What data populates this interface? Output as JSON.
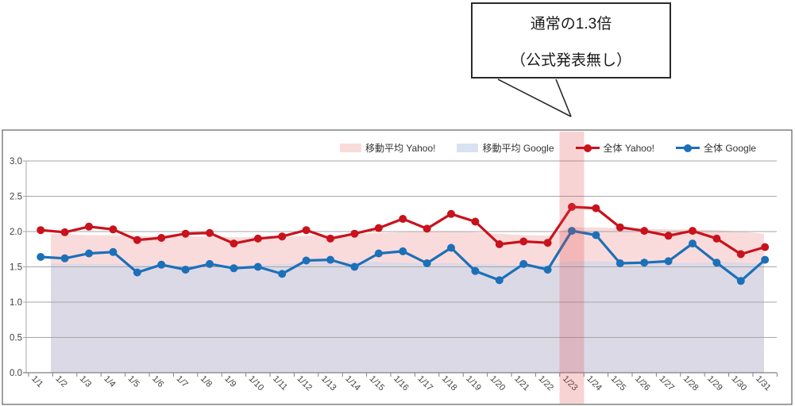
{
  "chart_data": {
    "type": "line",
    "categories": [
      "1/1",
      "1/2",
      "1/3",
      "1/4",
      "1/5",
      "1/6",
      "1/7",
      "1/8",
      "1/9",
      "1/10",
      "1/11",
      "1/12",
      "1/13",
      "1/14",
      "1/15",
      "1/16",
      "1/17",
      "1/18",
      "1/19",
      "1/20",
      "1/21",
      "1/22",
      "1/23",
      "1/24",
      "1/25",
      "1/26",
      "1/27",
      "1/28",
      "1/29",
      "1/30",
      "1/31"
    ],
    "series": [
      {
        "name": "移動平均 Yahoo!",
        "kind": "area",
        "legend_color": "#fadbdb",
        "fill": "#fadbdb",
        "values": [
          1.97,
          1.96,
          1.95,
          1.95,
          1.94,
          1.93,
          1.93,
          1.93,
          1.92,
          1.92,
          1.93,
          1.94,
          1.95,
          1.96,
          1.98,
          1.99,
          2.0,
          2.0,
          1.99,
          1.97,
          1.95,
          1.94,
          2.06,
          2.06,
          2.05,
          2.04,
          2.03,
          2.03,
          2.02,
          2.0,
          1.97
        ]
      },
      {
        "name": "移動平均 Google",
        "kind": "area",
        "legend_color": "#d9e2f0",
        "fill": "#dcd9e7",
        "values": [
          1.55,
          1.54,
          1.54,
          1.54,
          1.53,
          1.52,
          1.52,
          1.52,
          1.52,
          1.53,
          1.54,
          1.56,
          1.57,
          1.57,
          1.57,
          1.56,
          1.56,
          1.55,
          1.54,
          1.53,
          1.52,
          1.53,
          1.58,
          1.58,
          1.57,
          1.56,
          1.56,
          1.56,
          1.57,
          1.56,
          1.55
        ]
      },
      {
        "name": "全体 Yahoo!",
        "kind": "line",
        "legend_color": "#c9121c",
        "color": "#c9121c",
        "values": [
          2.02,
          1.99,
          2.07,
          2.03,
          1.88,
          1.91,
          1.97,
          1.98,
          1.83,
          1.9,
          1.93,
          2.02,
          1.9,
          1.97,
          2.05,
          2.18,
          2.04,
          2.25,
          2.14,
          1.82,
          1.86,
          1.84,
          2.35,
          2.33,
          2.06,
          2.01,
          1.94,
          2.01,
          1.9,
          1.68,
          1.78
        ]
      },
      {
        "name": "全体 Google",
        "kind": "line",
        "legend_color": "#1c70b8",
        "color": "#1c70b8",
        "values": [
          1.64,
          1.62,
          1.69,
          1.71,
          1.42,
          1.53,
          1.46,
          1.54,
          1.48,
          1.5,
          1.4,
          1.59,
          1.6,
          1.5,
          1.69,
          1.72,
          1.55,
          1.77,
          1.44,
          1.31,
          1.54,
          1.46,
          2.01,
          1.95,
          1.55,
          1.56,
          1.58,
          1.83,
          1.56,
          1.3,
          1.6
        ]
      }
    ],
    "ylim": [
      0,
      3.0
    ],
    "ytick_labels": [
      "0.0",
      "0.5",
      "1.0",
      "1.5",
      "2.0",
      "2.5",
      "3.0"
    ],
    "grid": true,
    "legend_position": "top",
    "highlight": {
      "category": "1/23",
      "color": "rgba(222,70,70,0.24)"
    },
    "annotation": {
      "lines": [
        "通常の1.3倍",
        "（公式発表無し）"
      ],
      "points_to": "1/23"
    }
  },
  "colors": {
    "grid": "#a6a6a6",
    "axis": "#808080",
    "frame": "#404040",
    "tick_text": "#404040"
  }
}
